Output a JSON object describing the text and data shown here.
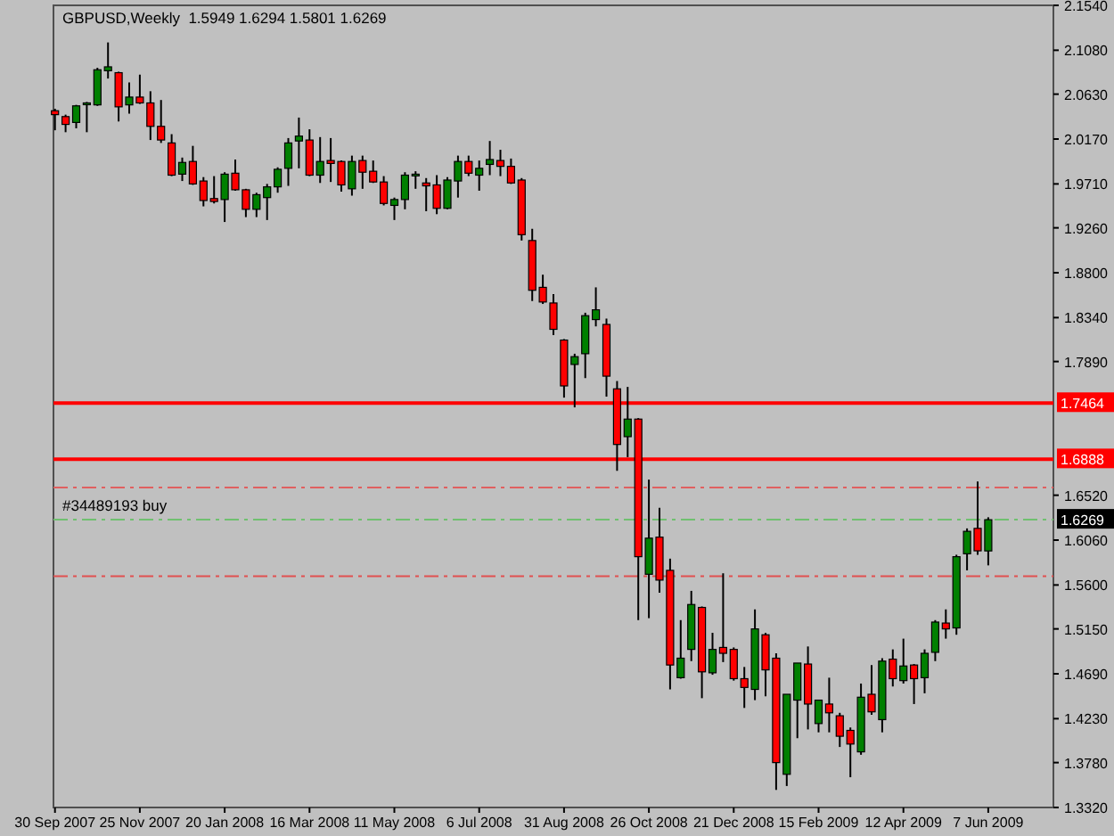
{
  "chart_data": {
    "type": "candlestick",
    "title": "GBPUSD,Weekly  1.5949 1.6294 1.5801 1.6269",
    "x": [
      "2007-09-30",
      "2007-10-07",
      "2007-10-14",
      "2007-10-21",
      "2007-10-28",
      "2007-11-04",
      "2007-11-11",
      "2007-11-18",
      "2007-11-25",
      "2007-12-02",
      "2007-12-09",
      "2007-12-16",
      "2007-12-23",
      "2007-12-30",
      "2008-01-06",
      "2008-01-13",
      "2008-01-20",
      "2008-01-27",
      "2008-02-03",
      "2008-02-10",
      "2008-02-17",
      "2008-02-24",
      "2008-03-02",
      "2008-03-09",
      "2008-03-16",
      "2008-03-23",
      "2008-03-30",
      "2008-04-06",
      "2008-04-13",
      "2008-04-20",
      "2008-04-27",
      "2008-05-04",
      "2008-05-11",
      "2008-05-18",
      "2008-05-25",
      "2008-06-01",
      "2008-06-08",
      "2008-06-15",
      "2008-06-22",
      "2008-06-29",
      "2008-07-06",
      "2008-07-13",
      "2008-07-20",
      "2008-07-27",
      "2008-08-03",
      "2008-08-10",
      "2008-08-17",
      "2008-08-24",
      "2008-08-31",
      "2008-09-07",
      "2008-09-14",
      "2008-09-21",
      "2008-09-28",
      "2008-10-05",
      "2008-10-12",
      "2008-10-19",
      "2008-10-26",
      "2008-11-02",
      "2008-11-09",
      "2008-11-16",
      "2008-11-23",
      "2008-11-30",
      "2008-12-07",
      "2008-12-14",
      "2008-12-21",
      "2008-12-28",
      "2009-01-04",
      "2009-01-11",
      "2009-01-18",
      "2009-01-25",
      "2009-02-01",
      "2009-02-08",
      "2009-02-15",
      "2009-02-22",
      "2009-03-01",
      "2009-03-08",
      "2009-03-15",
      "2009-03-22",
      "2009-03-29",
      "2009-04-05",
      "2009-04-12",
      "2009-04-19",
      "2009-04-26",
      "2009-05-03",
      "2009-05-10",
      "2009-05-17",
      "2009-05-24",
      "2009-05-31",
      "2009-06-07"
    ],
    "ohlc": [
      [
        2.046,
        2.048,
        2.026,
        2.042
      ],
      [
        2.04,
        2.042,
        2.024,
        2.032
      ],
      [
        2.034,
        2.052,
        2.028,
        2.051
      ],
      [
        2.053,
        2.055,
        2.024,
        2.054
      ],
      [
        2.052,
        2.09,
        2.051,
        2.088
      ],
      [
        2.087,
        2.116,
        2.079,
        2.091
      ],
      [
        2.085,
        2.086,
        2.035,
        2.05
      ],
      [
        2.052,
        2.075,
        2.043,
        2.06
      ],
      [
        2.06,
        2.083,
        2.053,
        2.054
      ],
      [
        2.054,
        2.066,
        2.016,
        2.03
      ],
      [
        2.03,
        2.057,
        2.013,
        2.016
      ],
      [
        2.013,
        2.022,
        1.979,
        1.98
      ],
      [
        1.981,
        1.998,
        1.974,
        1.993
      ],
      [
        1.994,
        2.01,
        1.97,
        1.971
      ],
      [
        1.974,
        1.978,
        1.948,
        1.954
      ],
      [
        1.956,
        1.979,
        1.951,
        1.953
      ],
      [
        1.955,
        1.983,
        1.932,
        1.981
      ],
      [
        1.982,
        1.996,
        1.964,
        1.965
      ],
      [
        1.965,
        1.966,
        1.937,
        1.945
      ],
      [
        1.945,
        1.962,
        1.937,
        1.96
      ],
      [
        1.957,
        1.971,
        1.934,
        1.968
      ],
      [
        1.968,
        1.988,
        1.962,
        1.986
      ],
      [
        1.987,
        2.018,
        1.969,
        2.013
      ],
      [
        2.015,
        2.039,
        1.987,
        2.02
      ],
      [
        2.016,
        2.027,
        1.979,
        1.98
      ],
      [
        1.98,
        2.019,
        1.972,
        1.994
      ],
      [
        1.995,
        2.018,
        1.973,
        1.992
      ],
      [
        1.994,
        1.995,
        1.963,
        1.97
      ],
      [
        1.966,
        2.0,
        1.959,
        1.994
      ],
      [
        1.995,
        2.0,
        1.966,
        1.983
      ],
      [
        1.984,
        1.995,
        1.972,
        1.973
      ],
      [
        1.973,
        1.979,
        1.949,
        1.951
      ],
      [
        1.949,
        1.957,
        1.934,
        1.955
      ],
      [
        1.955,
        1.983,
        1.945,
        1.98
      ],
      [
        1.98,
        1.984,
        1.966,
        1.981
      ],
      [
        1.972,
        1.977,
        1.943,
        1.969
      ],
      [
        1.97,
        1.98,
        1.94,
        1.946
      ],
      [
        1.946,
        1.978,
        1.945,
        1.975
      ],
      [
        1.974,
        2.0,
        1.957,
        1.994
      ],
      [
        1.994,
        2.0,
        1.979,
        1.982
      ],
      [
        1.98,
        1.995,
        1.964,
        1.987
      ],
      [
        1.991,
        2.015,
        1.98,
        1.996
      ],
      [
        1.995,
        2.006,
        1.979,
        1.989
      ],
      [
        1.989,
        1.997,
        1.971,
        1.972
      ],
      [
        1.975,
        1.977,
        1.913,
        1.919
      ],
      [
        1.913,
        1.925,
        1.851,
        1.862
      ],
      [
        1.865,
        1.878,
        1.848,
        1.85
      ],
      [
        1.849,
        1.858,
        1.816,
        1.822
      ],
      [
        1.811,
        1.812,
        1.752,
        1.764
      ],
      [
        1.786,
        1.797,
        1.742,
        1.794
      ],
      [
        1.797,
        1.839,
        1.772,
        1.836
      ],
      [
        1.832,
        1.865,
        1.825,
        1.842
      ],
      [
        1.827,
        1.833,
        1.753,
        1.774
      ],
      [
        1.761,
        1.769,
        1.677,
        1.704
      ],
      [
        1.712,
        1.763,
        1.691,
        1.73
      ],
      [
        1.73,
        1.731,
        1.524,
        1.589
      ],
      [
        1.571,
        1.668,
        1.526,
        1.608
      ],
      [
        1.609,
        1.639,
        1.552,
        1.565
      ],
      [
        1.575,
        1.587,
        1.453,
        1.478
      ],
      [
        1.465,
        1.524,
        1.464,
        1.485
      ],
      [
        1.494,
        1.554,
        1.482,
        1.54
      ],
      [
        1.537,
        1.538,
        1.444,
        1.471
      ],
      [
        1.47,
        1.511,
        1.468,
        1.494
      ],
      [
        1.496,
        1.572,
        1.481,
        1.49
      ],
      [
        1.494,
        1.496,
        1.462,
        1.464
      ],
      [
        1.464,
        1.476,
        1.434,
        1.455
      ],
      [
        1.453,
        1.535,
        1.442,
        1.515
      ],
      [
        1.509,
        1.511,
        1.446,
        1.473
      ],
      [
        1.485,
        1.49,
        1.35,
        1.378
      ],
      [
        1.366,
        1.448,
        1.354,
        1.448
      ],
      [
        1.442,
        1.48,
        1.403,
        1.48
      ],
      [
        1.479,
        1.497,
        1.412,
        1.438
      ],
      [
        1.418,
        1.442,
        1.409,
        1.442
      ],
      [
        1.438,
        1.465,
        1.409,
        1.429
      ],
      [
        1.426,
        1.429,
        1.394,
        1.405
      ],
      [
        1.411,
        1.414,
        1.363,
        1.397
      ],
      [
        1.389,
        1.459,
        1.386,
        1.445
      ],
      [
        1.448,
        1.478,
        1.427,
        1.43
      ],
      [
        1.422,
        1.485,
        1.409,
        1.482
      ],
      [
        1.484,
        1.494,
        1.456,
        1.464
      ],
      [
        1.462,
        1.505,
        1.459,
        1.477
      ],
      [
        1.478,
        1.479,
        1.438,
        1.464
      ],
      [
        1.465,
        1.494,
        1.449,
        1.49
      ],
      [
        1.491,
        1.524,
        1.482,
        1.522
      ],
      [
        1.521,
        1.535,
        1.505,
        1.515
      ],
      [
        1.516,
        1.591,
        1.509,
        1.589
      ],
      [
        1.592,
        1.618,
        1.575,
        1.615
      ],
      [
        1.618,
        1.666,
        1.591,
        1.595
      ],
      [
        1.5949,
        1.6294,
        1.5801,
        1.6269
      ]
    ],
    "colors": [
      "#ff0000",
      "#ff0000",
      "#008000",
      "#008000",
      "#008000",
      "#008000",
      "#ff0000",
      "#008000",
      "#ff0000",
      "#ff0000",
      "#ff0000",
      "#ff0000",
      "#008000",
      "#ff0000",
      "#ff0000",
      "#ff0000",
      "#008000",
      "#ff0000",
      "#ff0000",
      "#008000",
      "#008000",
      "#008000",
      "#008000",
      "#008000",
      "#ff0000",
      "#008000",
      "#ff0000",
      "#ff0000",
      "#008000",
      "#ff0000",
      "#ff0000",
      "#ff0000",
      "#008000",
      "#008000",
      "#008000",
      "#ff0000",
      "#ff0000",
      "#008000",
      "#008000",
      "#ff0000",
      "#008000",
      "#008000",
      "#ff0000",
      "#ff0000",
      "#ff0000",
      "#ff0000",
      "#ff0000",
      "#ff0000",
      "#ff0000",
      "#008000",
      "#008000",
      "#008000",
      "#ff0000",
      "#ff0000",
      "#008000",
      "#ff0000",
      "#008000",
      "#ff0000",
      "#ff0000",
      "#008000",
      "#008000",
      "#ff0000",
      "#008000",
      "#ff0000",
      "#ff0000",
      "#ff0000",
      "#008000",
      "#ff0000",
      "#ff0000",
      "#008000",
      "#008000",
      "#ff0000",
      "#008000",
      "#ff0000",
      "#ff0000",
      "#ff0000",
      "#008000",
      "#ff0000",
      "#008000",
      "#ff0000",
      "#008000",
      "#ff0000",
      "#008000",
      "#008000",
      "#ff0000",
      "#008000",
      "#008000",
      "#ff0000",
      "#008000"
    ],
    "xlim": [
      "2007-09-29",
      "2009-07-20"
    ],
    "xticks": [
      {
        "value": "2007-09-30",
        "label": "30 Sep 2007"
      },
      {
        "value": "2007-11-25",
        "label": "25 Nov 2007"
      },
      {
        "value": "2008-01-20",
        "label": "20 Jan 2008"
      },
      {
        "value": "2008-03-16",
        "label": "16 Mar 2008"
      },
      {
        "value": "2008-05-11",
        "label": "11 May 2008"
      },
      {
        "value": "2008-07-06",
        "label": "6 Jul 2008"
      },
      {
        "value": "2008-08-31",
        "label": "31 Aug 2008"
      },
      {
        "value": "2008-10-26",
        "label": "26 Oct 2008"
      },
      {
        "value": "2008-12-21",
        "label": "21 Dec 2008"
      },
      {
        "value": "2009-02-15",
        "label": "15 Feb 2009"
      },
      {
        "value": "2009-04-12",
        "label": "12 Apr 2009"
      },
      {
        "value": "2009-06-07",
        "label": "7 Jun 2009"
      }
    ],
    "ylim": [
      1.332,
      2.154
    ],
    "yticks": [
      {
        "value": 2.154,
        "label": "2.1540"
      },
      {
        "value": 2.108,
        "label": "2.1080"
      },
      {
        "value": 2.063,
        "label": "2.0630"
      },
      {
        "value": 2.017,
        "label": "2.0170"
      },
      {
        "value": 1.971,
        "label": "1.9710"
      },
      {
        "value": 1.926,
        "label": "1.9260"
      },
      {
        "value": 1.88,
        "label": "1.8800"
      },
      {
        "value": 1.834,
        "label": "1.8340"
      },
      {
        "value": 1.789,
        "label": "1.7890"
      },
      {
        "value": 1.652,
        "label": "1.6520"
      },
      {
        "value": 1.606,
        "label": "1.6060"
      },
      {
        "value": 1.56,
        "label": "1.5600"
      },
      {
        "value": 1.515,
        "label": "1.5150"
      },
      {
        "value": 1.469,
        "label": "1.4690"
      },
      {
        "value": 1.423,
        "label": "1.4230"
      },
      {
        "value": 1.378,
        "label": "1.3780"
      },
      {
        "value": 1.332,
        "label": "1.3320"
      }
    ],
    "ref_lines": [
      {
        "axis": "y",
        "value": 1.7464,
        "label": "1.7464",
        "color": "#ff0000",
        "line_style": "solid"
      },
      {
        "axis": "y",
        "value": 1.6888,
        "label": "1.6888",
        "color": "#ff0000",
        "line_style": "solid"
      },
      {
        "axis": "y",
        "value": 1.66,
        "color": "#e06060",
        "line_style": "dashed"
      },
      {
        "axis": "y",
        "value": 1.6269,
        "label": "#34489193 buy",
        "color": "#70c070",
        "line_style": "dashed"
      },
      {
        "axis": "y",
        "value": 1.569,
        "color": "#e05050",
        "line_style": "dashed"
      }
    ],
    "annotations": [
      "1.6269"
    ]
  }
}
